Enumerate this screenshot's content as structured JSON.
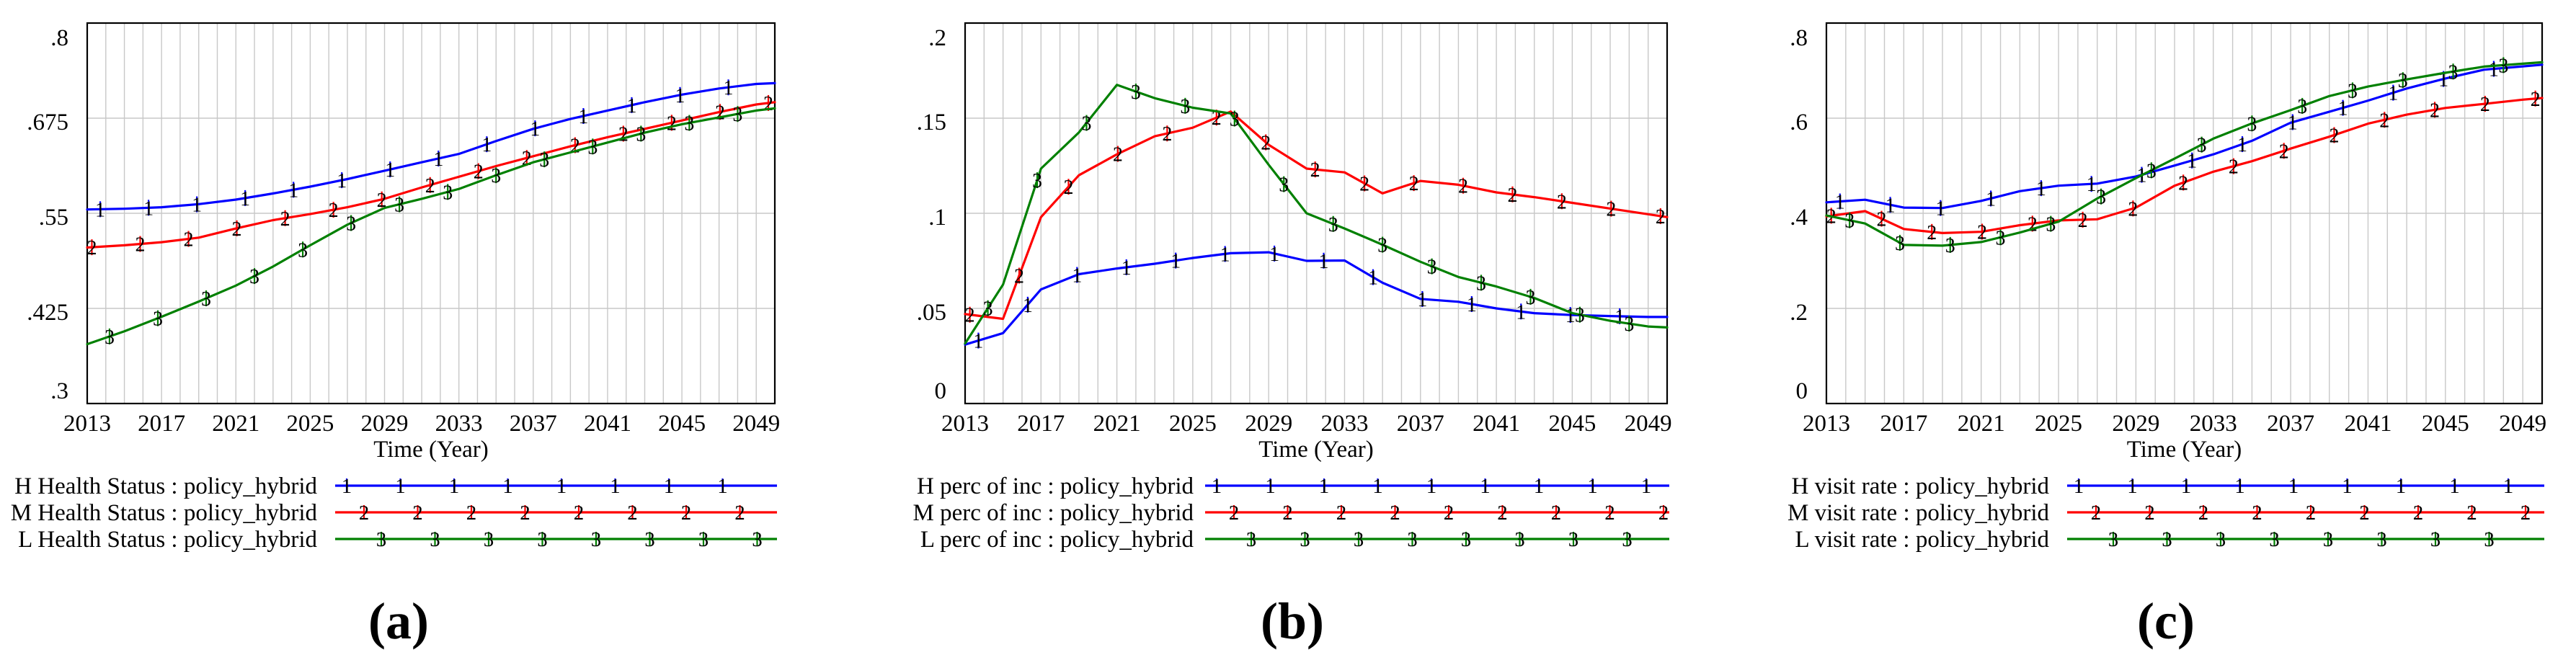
{
  "figure": {
    "background": "#ffffff",
    "grid_color": "#c8c8c8",
    "axis_color": "#000000"
  },
  "chart_data": [
    {
      "id": "a",
      "type": "line",
      "caption": "(a)",
      "xlabel": "Time (Year)",
      "ylabel": "",
      "xlim": [
        2013,
        2050
      ],
      "ylim": [
        0.3,
        0.8
      ],
      "grid": true,
      "legend_position": "bottom-left",
      "y_tick_labels": [
        ".8",
        ".675",
        ".55",
        ".425",
        ".3"
      ],
      "y_tick_values": [
        0.8,
        0.675,
        0.55,
        0.425,
        0.3
      ],
      "x_tick_labels": [
        "2013",
        "2017",
        "2021",
        "2025",
        "2029",
        "2033",
        "2037",
        "2041",
        "2045",
        "2049"
      ],
      "x_tick_values": [
        2013,
        2017,
        2021,
        2025,
        2029,
        2033,
        2037,
        2041,
        2045,
        2049
      ],
      "x": [
        2013,
        2015,
        2017,
        2019,
        2021,
        2023,
        2025,
        2027,
        2029,
        2031,
        2033,
        2035,
        2037,
        2039,
        2041,
        2043,
        2045,
        2047,
        2049,
        2050
      ],
      "series": [
        {
          "name": "H Health Status : policy_hybrid",
          "marker": "1",
          "color": "#0000ff",
          "values": [
            0.555,
            0.556,
            0.558,
            0.562,
            0.568,
            0.576,
            0.585,
            0.595,
            0.606,
            0.617,
            0.628,
            0.645,
            0.661,
            0.674,
            0.685,
            0.696,
            0.706,
            0.714,
            0.72,
            0.721
          ]
        },
        {
          "name": "M Health Status : policy_hybrid",
          "marker": "2",
          "color": "#ff0000",
          "values": [
            0.505,
            0.508,
            0.512,
            0.518,
            0.53,
            0.541,
            0.549,
            0.558,
            0.569,
            0.584,
            0.598,
            0.612,
            0.625,
            0.638,
            0.65,
            0.661,
            0.672,
            0.683,
            0.693,
            0.696
          ]
        },
        {
          "name": "L Health Status : policy_hybrid",
          "marker": "3",
          "color": "#008000",
          "values": [
            0.378,
            0.395,
            0.414,
            0.434,
            0.455,
            0.48,
            0.508,
            0.535,
            0.557,
            0.569,
            0.582,
            0.6,
            0.617,
            0.63,
            0.643,
            0.656,
            0.667,
            0.676,
            0.685,
            0.688
          ]
        }
      ]
    },
    {
      "id": "b",
      "type": "line",
      "caption": "(b)",
      "xlabel": "Time (Year)",
      "ylabel": "",
      "xlim": [
        2013,
        2050
      ],
      "ylim": [
        0,
        0.2
      ],
      "grid": true,
      "legend_position": "bottom-left",
      "y_tick_labels": [
        ".2",
        ".15",
        ".1",
        ".05",
        "0"
      ],
      "y_tick_values": [
        0.2,
        0.15,
        0.1,
        0.05,
        0
      ],
      "x_tick_labels": [
        "2013",
        "2017",
        "2021",
        "2025",
        "2029",
        "2033",
        "2037",
        "2041",
        "2045",
        "2049"
      ],
      "x_tick_values": [
        2013,
        2017,
        2021,
        2025,
        2029,
        2033,
        2037,
        2041,
        2045,
        2049
      ],
      "x": [
        2013,
        2015,
        2017,
        2019,
        2021,
        2023,
        2025,
        2027,
        2029,
        2031,
        2033,
        2035,
        2037,
        2039,
        2041,
        2043,
        2045,
        2047,
        2049,
        2050
      ],
      "series": [
        {
          "name": "H perc of inc : policy_hybrid",
          "marker": "1",
          "color": "#0000ff",
          "values": [
            0.031,
            0.037,
            0.06,
            0.068,
            0.071,
            0.0735,
            0.0765,
            0.079,
            0.0795,
            0.075,
            0.0752,
            0.0635,
            0.055,
            0.0535,
            0.05,
            0.0475,
            0.0465,
            0.046,
            0.0455,
            0.0455
          ]
        },
        {
          "name": "M perc of inc : policy_hybrid",
          "marker": "2",
          "color": "#ff0000",
          "values": [
            0.047,
            0.0445,
            0.098,
            0.12,
            0.131,
            0.1405,
            0.145,
            0.1535,
            0.136,
            0.1235,
            0.1215,
            0.1105,
            0.117,
            0.115,
            0.111,
            0.1085,
            0.1055,
            0.1025,
            0.0995,
            0.098
          ]
        },
        {
          "name": "L perc of inc : policy_hybrid",
          "marker": "3",
          "color": "#008000",
          "values": [
            0.0315,
            0.0625,
            0.1235,
            0.1425,
            0.1675,
            0.1605,
            0.1555,
            0.1525,
            0.1255,
            0.1,
            0.092,
            0.0835,
            0.0745,
            0.0665,
            0.0615,
            0.0555,
            0.0475,
            0.0435,
            0.0405,
            0.04
          ]
        }
      ]
    },
    {
      "id": "c",
      "type": "line",
      "caption": "(c)",
      "xlabel": "Time (Year)",
      "ylabel": "",
      "xlim": [
        2013,
        2050
      ],
      "ylim": [
        0,
        0.8
      ],
      "grid": true,
      "legend_position": "bottom-left",
      "y_tick_labels": [
        ".8",
        ".6",
        ".4",
        ".2",
        "0"
      ],
      "y_tick_values": [
        0.8,
        0.6,
        0.4,
        0.2,
        0
      ],
      "x_tick_labels": [
        "2013",
        "2017",
        "2021",
        "2025",
        "2029",
        "2033",
        "2037",
        "2041",
        "2045",
        "2049"
      ],
      "x_tick_values": [
        2013,
        2017,
        2021,
        2025,
        2029,
        2033,
        2037,
        2041,
        2045,
        2049
      ],
      "x": [
        2013,
        2015,
        2017,
        2019,
        2021,
        2023,
        2025,
        2027,
        2029,
        2031,
        2033,
        2035,
        2037,
        2039,
        2041,
        2043,
        2045,
        2047,
        2049,
        2050
      ],
      "series": [
        {
          "name": "H visit rate : policy_hybrid",
          "marker": "1",
          "color": "#0000ff",
          "values": [
            0.423,
            0.4285,
            0.412,
            0.411,
            0.426,
            0.4465,
            0.458,
            0.4625,
            0.4775,
            0.5005,
            0.524,
            0.5525,
            0.5905,
            0.6135,
            0.637,
            0.6625,
            0.6835,
            0.702,
            0.709,
            0.7125
          ]
        },
        {
          "name": "M visit rate : policy_hybrid",
          "marker": "2",
          "color": "#ff0000",
          "values": [
            0.3935,
            0.4045,
            0.367,
            0.3585,
            0.361,
            0.375,
            0.385,
            0.3875,
            0.412,
            0.458,
            0.4875,
            0.5095,
            0.536,
            0.561,
            0.5885,
            0.6075,
            0.6215,
            0.63,
            0.639,
            0.6425
          ]
        },
        {
          "name": "L visit rate : policy_hybrid",
          "marker": "3",
          "color": "#008000",
          "values": [
            0.3955,
            0.3785,
            0.3335,
            0.332,
            0.3395,
            0.3595,
            0.3825,
            0.431,
            0.474,
            0.515,
            0.557,
            0.589,
            0.617,
            0.6465,
            0.6665,
            0.6815,
            0.6955,
            0.7085,
            0.7145,
            0.7175
          ]
        }
      ]
    }
  ]
}
